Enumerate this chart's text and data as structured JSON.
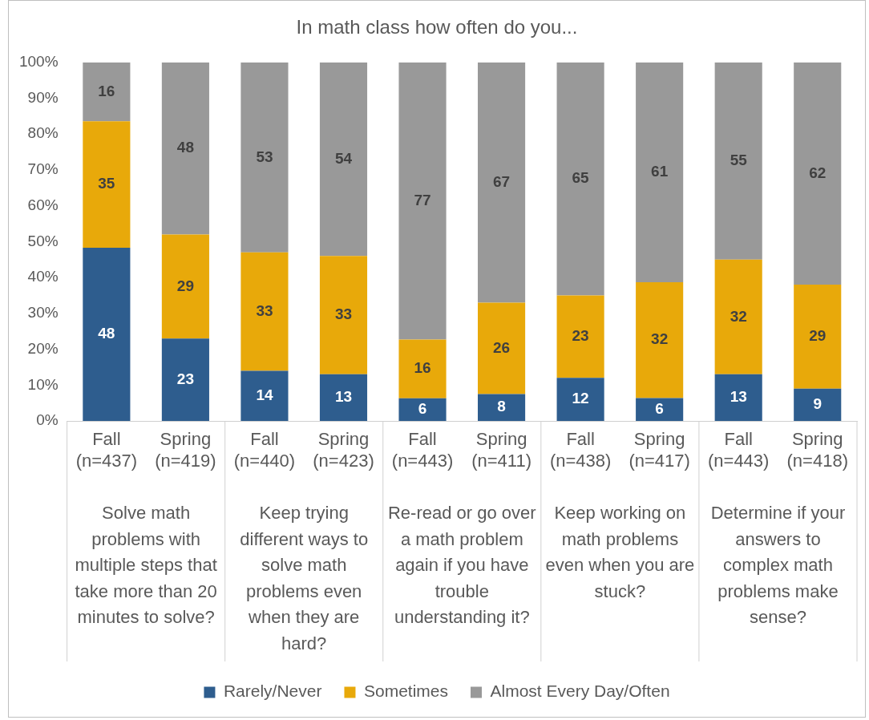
{
  "chart_data": {
    "type": "bar",
    "stacked": true,
    "title": "In math class how often do you...",
    "categories": [
      "Fall (n=437)",
      "Spring (n=419)",
      "Fall (n=440)",
      "Spring (n=423)",
      "Fall (n=443)",
      "Spring (n=411)",
      "Fall (n=438)",
      "Spring (n=417)",
      "Fall (n=443)",
      "Spring (n=418)"
    ],
    "series": [
      {
        "name": "Rarely/Never",
        "color": "#2e5d8e",
        "values": [
          48.3,
          23,
          14,
          13,
          6.3,
          7.5,
          12,
          6.4,
          13,
          9
        ],
        "value_labels": [
          "48",
          "23",
          "14",
          "13",
          "6",
          "8",
          "12",
          "6",
          "13",
          "9"
        ]
      },
      {
        "name": "Sometimes",
        "color": "#e8a90a",
        "values": [
          35.3,
          29,
          33,
          33,
          16.4,
          25.5,
          23,
          32.3,
          32,
          29
        ],
        "value_labels": [
          "35",
          "29",
          "33",
          "33",
          "16",
          "26",
          "23",
          "32",
          "32",
          "29"
        ]
      },
      {
        "name": "Almost Every Day/Often",
        "color": "#999999",
        "values": [
          16.4,
          48,
          53,
          54,
          77.3,
          67,
          65,
          61.3,
          55,
          62
        ],
        "value_labels": [
          "16",
          "48",
          "53",
          "54",
          "77",
          "67",
          "65",
          "61",
          "55",
          "62"
        ]
      }
    ],
    "annotations": [
      "Solve math problems with multiple steps that take more than 20 minutes to solve?",
      "Keep trying different ways to solve math problems even when they are hard?",
      "Re-read or go over a math problem again if you have trouble understanding it?",
      "Keep working on math problems even when you are stuck?",
      "Determine if your answers to complex math problems make sense?"
    ],
    "ylim": [
      0,
      100
    ],
    "yticks": [
      {
        "value": 0,
        "label": "0%"
      },
      {
        "value": 10,
        "label": "10%"
      },
      {
        "value": 20,
        "label": "20%"
      },
      {
        "value": 30,
        "label": "30%"
      },
      {
        "value": 40,
        "label": "40%"
      },
      {
        "value": 50,
        "label": "50%"
      },
      {
        "value": 60,
        "label": "60%"
      },
      {
        "value": 70,
        "label": "70%"
      },
      {
        "value": 80,
        "label": "80%"
      },
      {
        "value": 90,
        "label": "90%"
      },
      {
        "value": 100,
        "label": "100%"
      }
    ],
    "grid": false,
    "legend": "bottom"
  }
}
